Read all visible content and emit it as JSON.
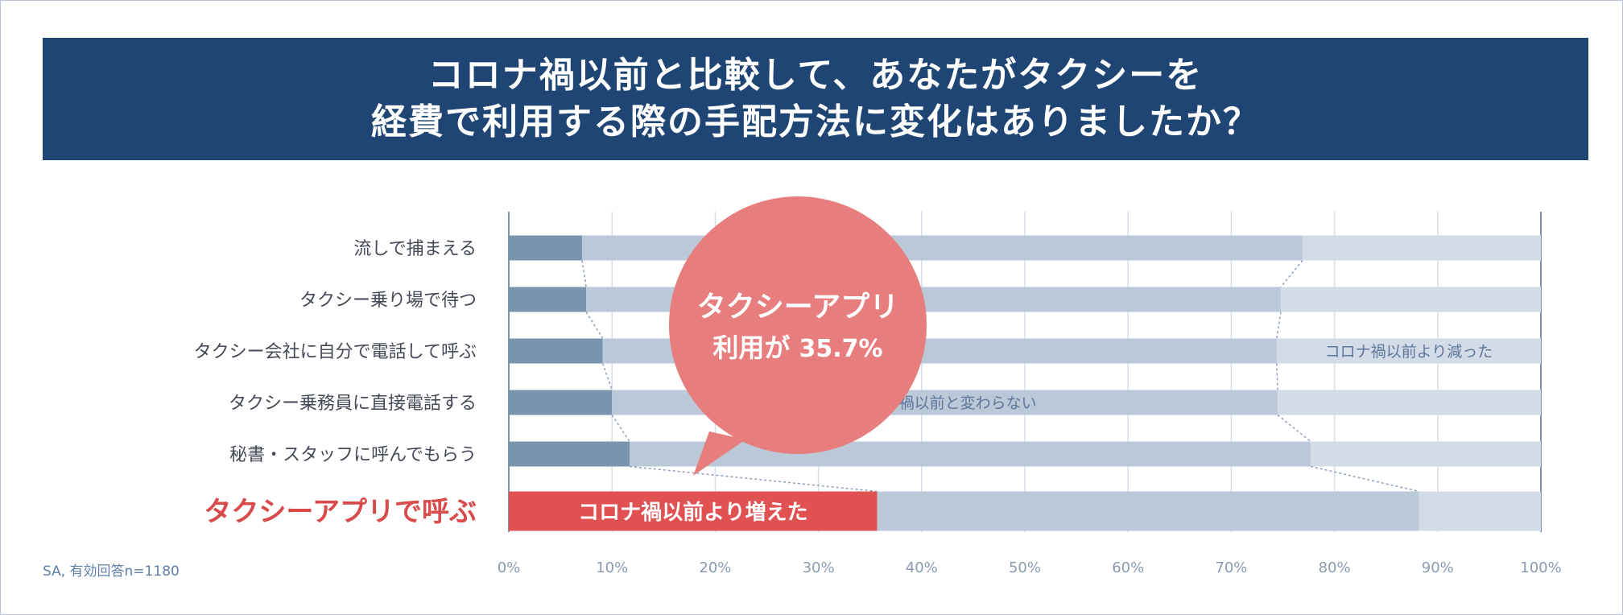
{
  "title": {
    "line1": "コロナ禍以前と比較して、あなたがタクシーを",
    "line2": "経費で利用する際の手配方法に変化はありましたか？"
  },
  "footnote": "SA, 有効回答n=1180",
  "callout": {
    "line1": "タクシーアプリ",
    "line2_prefix": "利用が ",
    "line2_value": "35.7%"
  },
  "colors": {
    "banner": "#1f4575",
    "increased": "#7a94b0",
    "same": "#bac8d8",
    "decreased": "#d3dce6",
    "highlight": "#e05252",
    "callout": "#e87d7d",
    "highlight_label": "#d94a4a"
  },
  "chart_data": {
    "type": "bar",
    "orientation": "horizontal",
    "stacked": true,
    "categories": [
      "流しで捕まえる",
      "タクシー乗り場で待つ",
      "タクシー会社に自分で電話して呼ぶ",
      "タクシー乗務員に直接電話する",
      "秘書・スタッフに呼んでもらう",
      "タクシーアプリで呼ぶ"
    ],
    "highlight_category": "タクシーアプリで呼ぶ",
    "series": [
      {
        "name": "コロナ禍以前より増えた",
        "values": [
          7.1,
          7.5,
          9.1,
          10.0,
          11.7,
          35.7
        ]
      },
      {
        "name": "コロナ禍以前と変わらない",
        "values": [
          69.8,
          67.3,
          65.3,
          64.5,
          66.0,
          52.5
        ]
      },
      {
        "name": "コロナ禍以前より減った",
        "values": [
          23.1,
          25.2,
          25.6,
          25.5,
          22.3,
          11.8
        ]
      }
    ],
    "xlim": [
      0,
      100
    ],
    "xticks": [
      "0%",
      "10%",
      "20%",
      "30%",
      "40%",
      "50%",
      "60%",
      "70%",
      "80%",
      "90%",
      "100%"
    ],
    "grid": true,
    "legend": "inline labels on bars"
  }
}
